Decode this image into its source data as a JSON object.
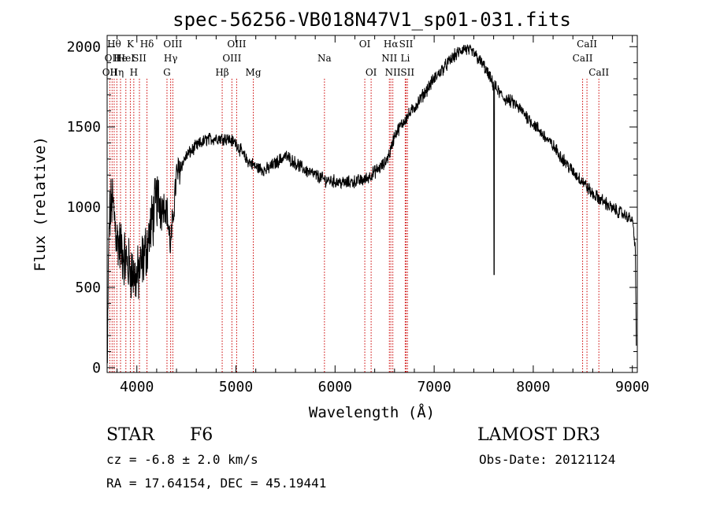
{
  "chart_data": {
    "type": "line",
    "title": "spec-56256-VB018N47V1_sp01-031.fits",
    "xlabel": "Wavelength (Å)",
    "ylabel": "Flux (relative)",
    "xlim": [
      3700,
      9050
    ],
    "ylim": [
      -30,
      2070
    ],
    "x_ticks": [
      4000,
      5000,
      6000,
      7000,
      8000,
      9000
    ],
    "x_tick_labels": [
      "4000",
      "5000",
      "6000",
      "7000",
      "8000",
      "9000"
    ],
    "y_ticks": [
      0,
      500,
      1000,
      1500,
      2000
    ],
    "y_tick_labels": [
      "0",
      "500",
      "1000",
      "1500",
      "2000"
    ],
    "line_color": "#000000",
    "marker_color": "#cc0000",
    "spectrum_anchors": {
      "x": [
        3700,
        3720,
        3750,
        3800,
        3900,
        4000,
        4100,
        4200,
        4300,
        4340,
        4400,
        4500,
        4600,
        4700,
        4800,
        4900,
        5000,
        5100,
        5200,
        5300,
        5500,
        5700,
        5900,
        6100,
        6300,
        6500,
        6560,
        6600,
        6700,
        6800,
        7000,
        7200,
        7300,
        7400,
        7500,
        7600,
        7700,
        7800,
        7900,
        8000,
        8100,
        8200,
        8300,
        8400,
        8500,
        8600,
        8700,
        8800,
        8900,
        9000,
        9030,
        9040
      ],
      "y": [
        30,
        900,
        1050,
        800,
        650,
        550,
        750,
        1050,
        1000,
        750,
        1200,
        1320,
        1380,
        1420,
        1430,
        1430,
        1400,
        1300,
        1250,
        1230,
        1320,
        1230,
        1170,
        1150,
        1170,
        1270,
        1350,
        1450,
        1540,
        1620,
        1800,
        1940,
        1990,
        1960,
        1880,
        1760,
        1680,
        1650,
        1590,
        1520,
        1450,
        1380,
        1300,
        1220,
        1160,
        1080,
        1040,
        990,
        960,
        920,
        750,
        150
      ]
    },
    "features": [
      {
        "x": 7605,
        "y": 580,
        "label": "telluric absorption spike"
      }
    ],
    "line_markers": [
      {
        "wavelength": 3727,
        "label": "OII",
        "row": 2
      },
      {
        "wavelength": 3750,
        "label": "OII",
        "row": 1
      },
      {
        "wavelength": 3771,
        "label": "Hθ",
        "row": 0
      },
      {
        "wavelength": 3798,
        "label": "Hη",
        "row": 2
      },
      {
        "wavelength": 3835,
        "label": "He",
        "row": 1
      },
      {
        "wavelength": 3889,
        "label": "HeI",
        "row": 1
      },
      {
        "wavelength": 3934,
        "label": "K",
        "row": 0
      },
      {
        "wavelength": 3969,
        "label": "H",
        "row": 2
      },
      {
        "wavelength": 4026,
        "label": "SII",
        "row": 1
      },
      {
        "wavelength": 4102,
        "label": "Hδ",
        "row": 0
      },
      {
        "wavelength": 4304,
        "label": "G",
        "row": 2
      },
      {
        "wavelength": 4341,
        "label": "Hγ",
        "row": 1
      },
      {
        "wavelength": 4363,
        "label": "OIII",
        "row": 0
      },
      {
        "wavelength": 4861,
        "label": "Hβ",
        "row": 2
      },
      {
        "wavelength": 4959,
        "label": "OIII",
        "row": 1
      },
      {
        "wavelength": 5007,
        "label": "OIII",
        "row": 0
      },
      {
        "wavelength": 5175,
        "label": "Mg",
        "row": 2
      },
      {
        "wavelength": 5893,
        "label": "Na",
        "row": 1
      },
      {
        "wavelength": 6300,
        "label": "OI",
        "row": 0
      },
      {
        "wavelength": 6364,
        "label": "OI",
        "row": 2
      },
      {
        "wavelength": 6548,
        "label": "NII",
        "row": 1
      },
      {
        "wavelength": 6563,
        "label": "Hα",
        "row": 0
      },
      {
        "wavelength": 6583,
        "label": "NII",
        "row": 2
      },
      {
        "wavelength": 6708,
        "label": "Li",
        "row": 1
      },
      {
        "wavelength": 6717,
        "label": "SII",
        "row": 0
      },
      {
        "wavelength": 6731,
        "label": "SII",
        "row": 2
      },
      {
        "wavelength": 8498,
        "label": "CaII",
        "row": 1
      },
      {
        "wavelength": 8542,
        "label": "CaII",
        "row": 0
      },
      {
        "wavelength": 8662,
        "label": "CaII",
        "row": 2
      }
    ]
  },
  "info": {
    "class_label": "STAR",
    "subclass_label": "F6",
    "survey_label": "LAMOST DR3",
    "redshift_text": "cz = -6.8 ± 2.0 km/s",
    "obs_date_text": "Obs-Date: 20121124",
    "coords_text": "RA =  17.64154, DEC =  45.19441"
  }
}
